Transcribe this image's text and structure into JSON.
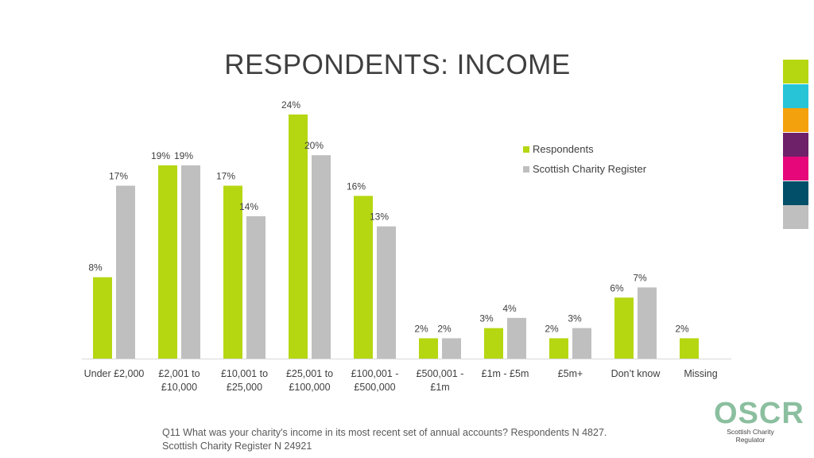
{
  "title": "RESPONDENTS: INCOME",
  "chart_data": {
    "type": "bar",
    "categories": [
      [
        "Under £2,000"
      ],
      [
        "£2,001 to",
        "£10,000"
      ],
      [
        "£10,001 to",
        "£25,000"
      ],
      [
        "£25,001 to",
        "£100,000"
      ],
      [
        "£100,001 -",
        "£500,000"
      ],
      [
        "£500,001 -",
        "£1m"
      ],
      [
        "£1m - £5m"
      ],
      [
        "£5m+"
      ],
      [
        "Don’t know"
      ],
      [
        "Missing"
      ]
    ],
    "series": [
      {
        "name": "Respondents",
        "color": "#b5d712",
        "values": [
          8,
          19,
          17,
          24,
          16,
          2,
          3,
          2,
          6,
          2
        ],
        "labels": [
          "8%",
          "19%",
          "17%",
          "24%",
          "16%",
          "2%",
          "3%",
          "2%",
          "6%",
          "2%"
        ]
      },
      {
        "name": "Scottish Charity Register",
        "color": "#bfbfbf",
        "values": [
          17,
          19,
          14,
          20,
          13,
          2,
          4,
          3,
          7,
          null
        ],
        "labels": [
          "17%",
          "19%",
          "14%",
          "20%",
          "13%",
          "2%",
          "4%",
          "3%",
          "7%",
          ""
        ]
      }
    ],
    "ylim": [
      0,
      25
    ],
    "grid": false,
    "legend_position": "top-right"
  },
  "footnote": {
    "line1": "Q11 What was your charity's income in its most recent set of annual accounts? Respondents N 4827.",
    "line2": "Scottish Charity Register N 24921"
  },
  "logo": {
    "mark": "OSCR",
    "text": "Scottish Charity Regulator"
  },
  "color_strip": [
    "#b5d712",
    "#27c4d8",
    "#f4a10e",
    "#6e2068",
    "#e6087a",
    "#024f6a",
    "#bfbfbf"
  ]
}
